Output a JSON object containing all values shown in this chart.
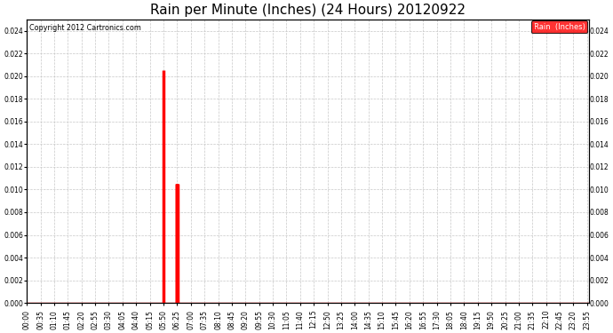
{
  "title": "Rain per Minute (Inches) (24 Hours) 20120922",
  "copyright_text": "Copyright 2012 Cartronics.com",
  "legend_label": "Rain  (Inches)",
  "ylim": [
    0.0,
    0.025
  ],
  "yticks": [
    0.0,
    0.002,
    0.004,
    0.006,
    0.008,
    0.01,
    0.012,
    0.014,
    0.016,
    0.018,
    0.02,
    0.022,
    0.024
  ],
  "background_color": "#ffffff",
  "plot_bg_color": "#ffffff",
  "bar_color": "#ff0000",
  "baseline_color": "#ff0000",
  "grid_color": "#c8c8c8",
  "title_fontsize": 11,
  "tick_fontsize": 5.5,
  "minutes_per_day": 1440,
  "spike_minutes": [
    350,
    383,
    384,
    385,
    386
  ],
  "spike_values": [
    0.0205,
    0.0105,
    0.0105,
    0.0105,
    0.0105
  ]
}
